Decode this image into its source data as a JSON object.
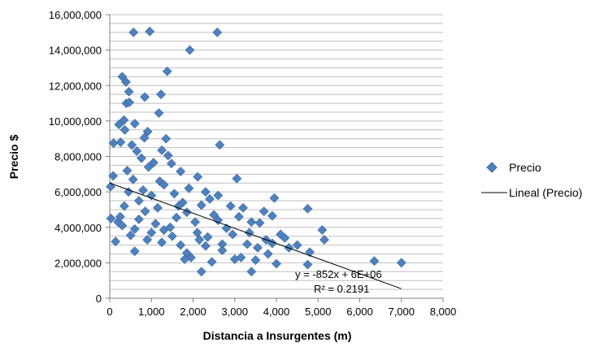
{
  "chart_data": {
    "type": "scatter",
    "xlabel": "Distancia a Insurgentes (m)",
    "ylabel": "Precio $",
    "xlim": [
      0,
      8000
    ],
    "ylim": [
      0,
      16000000
    ],
    "x_ticks": [
      "0",
      "1,000",
      "2,000",
      "3,000",
      "4,000",
      "5,000",
      "6,000",
      "7,000",
      "8,000"
    ],
    "y_ticks": [
      "0",
      "2,000,000",
      "4,000,000",
      "6,000,000",
      "8,000,000",
      "10,000,000",
      "12,000,000",
      "14,000,000",
      "16,000,000"
    ],
    "grid": "horizontal",
    "legend_position": "right",
    "colors": {
      "marker": "#4F81BD",
      "marker_stroke": "#3B6AA0",
      "trendline": "#000000",
      "grid": "#BFBFBF",
      "axis": "#808080"
    },
    "series": [
      {
        "name": "Precio",
        "marker": "diamond",
        "points": [
          [
            570,
            15000000
          ],
          [
            960,
            15050000
          ],
          [
            2580,
            15000000
          ],
          [
            1920,
            14000000
          ],
          [
            300,
            12500000
          ],
          [
            1380,
            12800000
          ],
          [
            390,
            12200000
          ],
          [
            460,
            11650000
          ],
          [
            840,
            11350000
          ],
          [
            1230,
            11500000
          ],
          [
            400,
            11000000
          ],
          [
            470,
            11050000
          ],
          [
            1180,
            10450000
          ],
          [
            340,
            10050000
          ],
          [
            220,
            9800000
          ],
          [
            600,
            9850000
          ],
          [
            910,
            9400000
          ],
          [
            360,
            9500000
          ],
          [
            1350,
            9000000
          ],
          [
            830,
            9050000
          ],
          [
            90,
            8750000
          ],
          [
            260,
            8800000
          ],
          [
            530,
            8650000
          ],
          [
            2640,
            8650000
          ],
          [
            650,
            8300000
          ],
          [
            1250,
            8350000
          ],
          [
            1400,
            8050000
          ],
          [
            760,
            7900000
          ],
          [
            1050,
            7650000
          ],
          [
            930,
            7400000
          ],
          [
            1480,
            7600000
          ],
          [
            420,
            7200000
          ],
          [
            1700,
            7150000
          ],
          [
            3050,
            6750000
          ],
          [
            2110,
            6850000
          ],
          [
            80,
            6900000
          ],
          [
            560,
            6700000
          ],
          [
            1200,
            6600000
          ],
          [
            20,
            6300000
          ],
          [
            1900,
            6200000
          ],
          [
            2300,
            6000000
          ],
          [
            2600,
            5800000
          ],
          [
            3950,
            5650000
          ],
          [
            2400,
            5600000
          ],
          [
            1750,
            5400000
          ],
          [
            2200,
            5250000
          ],
          [
            2900,
            5200000
          ],
          [
            3200,
            5100000
          ],
          [
            4750,
            5050000
          ],
          [
            3700,
            4900000
          ],
          [
            3900,
            4650000
          ],
          [
            2500,
            4700000
          ],
          [
            1600,
            4550000
          ],
          [
            700,
            4450000
          ],
          [
            30,
            4500000
          ],
          [
            200,
            4300000
          ],
          [
            1100,
            4200000
          ],
          [
            3600,
            4250000
          ],
          [
            3400,
            4300000
          ],
          [
            5100,
            3850000
          ],
          [
            4100,
            3600000
          ],
          [
            5150,
            3300000
          ],
          [
            2800,
            3950000
          ],
          [
            1300,
            3850000
          ],
          [
            2100,
            3700000
          ],
          [
            1500,
            3500000
          ],
          [
            900,
            3300000
          ],
          [
            4500,
            3000000
          ],
          [
            3300,
            3050000
          ],
          [
            2700,
            3050000
          ],
          [
            140,
            3200000
          ],
          [
            600,
            2650000
          ],
          [
            1700,
            3000000
          ],
          [
            2300,
            2950000
          ],
          [
            4800,
            2600000
          ],
          [
            3800,
            2500000
          ],
          [
            1850,
            2550000
          ],
          [
            3500,
            2150000
          ],
          [
            2450,
            2050000
          ],
          [
            3000,
            2200000
          ],
          [
            4000,
            1950000
          ],
          [
            3150,
            2300000
          ],
          [
            6350,
            2100000
          ],
          [
            7000,
            2000000
          ],
          [
            4750,
            1900000
          ],
          [
            2200,
            1500000
          ],
          [
            3400,
            1500000
          ],
          [
            1950,
            2300000
          ],
          [
            800,
            6100000
          ],
          [
            1000,
            5800000
          ],
          [
            1300,
            6400000
          ],
          [
            450,
            6000000
          ],
          [
            700,
            5500000
          ],
          [
            1150,
            5100000
          ],
          [
            1550,
            5900000
          ],
          [
            350,
            5200000
          ],
          [
            1850,
            4850000
          ],
          [
            2050,
            4300000
          ],
          [
            2600,
            4400000
          ],
          [
            1450,
            4000000
          ],
          [
            1000,
            3700000
          ],
          [
            600,
            3900000
          ],
          [
            300,
            4100000
          ],
          [
            2350,
            3450000
          ],
          [
            2950,
            3600000
          ],
          [
            3350,
            3700000
          ],
          [
            3750,
            3300000
          ],
          [
            3550,
            2850000
          ],
          [
            2150,
            3300000
          ],
          [
            1250,
            3150000
          ],
          [
            500,
            3550000
          ],
          [
            850,
            4900000
          ],
          [
            1650,
            5200000
          ],
          [
            250,
            4600000
          ],
          [
            3100,
            4600000
          ],
          [
            2700,
            2700000
          ],
          [
            4300,
            2850000
          ],
          [
            1800,
            2200000
          ],
          [
            3900,
            3100000
          ],
          [
            4200,
            3400000
          ]
        ]
      }
    ],
    "trendline": {
      "name": "Lineal (Precio)",
      "slope": -852,
      "intercept": 6500000,
      "x_range": [
        0,
        7000
      ],
      "equation": "y = -852x + 6E+06",
      "r_squared": "R² = 0.2191"
    }
  }
}
